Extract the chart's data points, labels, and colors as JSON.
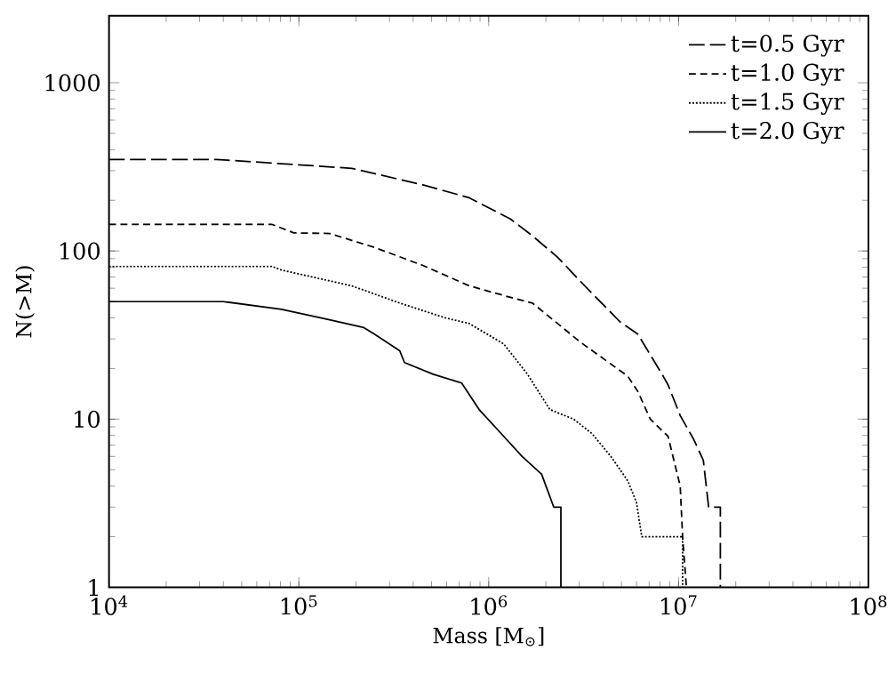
{
  "chart_data": {
    "type": "line",
    "xlabel": "Mass [M$_{⊙}$]",
    "ylabel": "N(>M)",
    "log": "xy",
    "grid": false,
    "legend": "top right",
    "marker": "none",
    "xlim": [
      10000,
      100000000
    ],
    "ylim": [
      1,
      2500
    ],
    "xticks": [
      {
        "value": 10000,
        "label": "10$^{4}$"
      },
      {
        "value": 100000,
        "label": "10$^{5}$"
      },
      {
        "value": 1000000,
        "label": "10$^{6}$"
      },
      {
        "value": 10000000,
        "label": "10$^{7}$"
      },
      {
        "value": 100000000,
        "label": "10$^{8}$"
      }
    ],
    "yticks": [
      1,
      10,
      100,
      1000
    ],
    "series": [
      {
        "name": "t=0.5 Gyr",
        "color": "#000000",
        "line_style": "dashed",
        "x": [
          10000,
          36700,
          190000,
          450000,
          790000,
          1300000,
          1700000,
          2300000,
          3000000,
          4900000,
          6100000,
          8300000,
          8800000,
          10200000,
          12000000,
          13500000,
          14400000,
          16600000,
          16600000
        ],
        "values": [
          350,
          350,
          310,
          247,
          207,
          155,
          123,
          92,
          67,
          38,
          32,
          18,
          16,
          10.5,
          7.6,
          5.7,
          3,
          3,
          1
        ]
      },
      {
        "name": "t=1.0 Gyr",
        "color": "#000000",
        "line_style": "dashed",
        "x": [
          10000,
          72000,
          94000,
          145000,
          250000,
          450000,
          790000,
          1300000,
          1700000,
          2450000,
          3000000,
          5400000,
          6100000,
          7100000,
          8800000,
          10200000,
          10500000,
          11000000
        ],
        "values": [
          144,
          144,
          128,
          127,
          105,
          82,
          62,
          53,
          49,
          35,
          29,
          18,
          14.6,
          10,
          7.9,
          4,
          2,
          1
        ]
      },
      {
        "name": "t=1.5 Gyr",
        "color": "#000000",
        "line_style": "dotted",
        "x": [
          10000,
          72000,
          81000,
          190000,
          340000,
          590000,
          790000,
          1200000,
          1600000,
          2100000,
          2800000,
          3500000,
          4400000,
          5400000,
          6000000,
          6400000,
          10500000,
          10500000
        ],
        "values": [
          81,
          81,
          77,
          62,
          49,
          40,
          37,
          28,
          18.5,
          11.4,
          10,
          8.2,
          6,
          4.3,
          3.2,
          2,
          2,
          1
        ]
      },
      {
        "name": "t=2.0 Gyr",
        "color": "#000000",
        "line_style": "solid",
        "x": [
          10000,
          40000,
          81000,
          145000,
          220000,
          250000,
          340000,
          360000,
          510000,
          720000,
          890000,
          1200000,
          1500000,
          1900000,
          2200000,
          2400000,
          2400000
        ],
        "values": [
          50,
          50,
          45,
          39,
          35,
          32,
          25.5,
          21.7,
          18.5,
          16.4,
          11.4,
          7.9,
          6,
          4.7,
          3,
          3,
          1
        ]
      }
    ]
  }
}
